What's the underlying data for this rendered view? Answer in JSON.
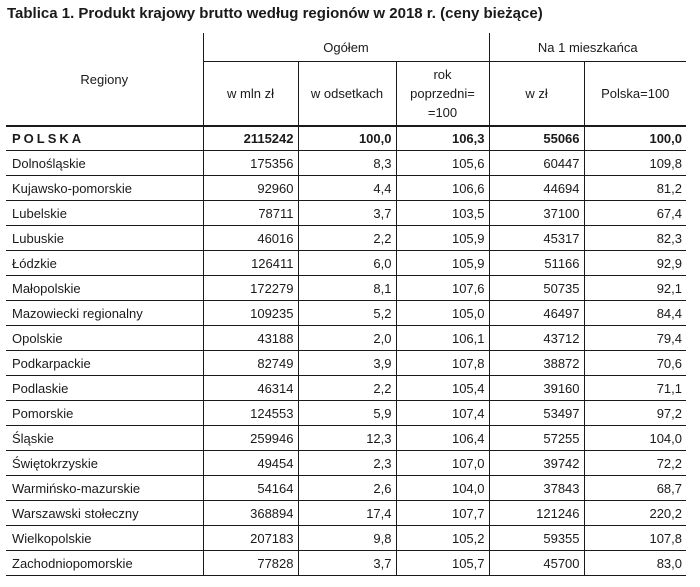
{
  "title": "Tablica 1. Produkt krajowy brutto według regionów w 2018 r. (ceny bieżące)",
  "header": {
    "regiony": "Regiony",
    "group_ogolem": "Ogółem",
    "group_na1": "Na 1 mieszkańca",
    "col_mln": "w mln zł",
    "col_odsetkach": "w odsetkach",
    "col_rok": "rok\npoprzedni=\n=100",
    "col_zl": "w zł",
    "col_polska": "Polska=100"
  },
  "total": {
    "region": "POLSKA",
    "mln": "2115242",
    "odsetkach": "100,0",
    "rok": "106,3",
    "zl": "55066",
    "polska": "100,0"
  },
  "rows": [
    {
      "region": "Dolnośląskie",
      "mln": "175356",
      "odsetkach": "8,3",
      "rok": "105,6",
      "zl": "60447",
      "polska": "109,8"
    },
    {
      "region": "Kujawsko-pomorskie",
      "mln": "92960",
      "odsetkach": "4,4",
      "rok": "106,6",
      "zl": "44694",
      "polska": "81,2"
    },
    {
      "region": "Lubelskie",
      "mln": "78711",
      "odsetkach": "3,7",
      "rok": "103,5",
      "zl": "37100",
      "polska": "67,4"
    },
    {
      "region": "Lubuskie",
      "mln": "46016",
      "odsetkach": "2,2",
      "rok": "105,9",
      "zl": "45317",
      "polska": "82,3"
    },
    {
      "region": "Łódzkie",
      "mln": "126411",
      "odsetkach": "6,0",
      "rok": "105,9",
      "zl": "51166",
      "polska": "92,9"
    },
    {
      "region": "Małopolskie",
      "mln": "172279",
      "odsetkach": "8,1",
      "rok": "107,6",
      "zl": "50735",
      "polska": "92,1"
    },
    {
      "region": "Mazowiecki regionalny",
      "mln": "109235",
      "odsetkach": "5,2",
      "rok": "105,0",
      "zl": "46497",
      "polska": "84,4"
    },
    {
      "region": "Opolskie",
      "mln": "43188",
      "odsetkach": "2,0",
      "rok": "106,1",
      "zl": "43712",
      "polska": "79,4"
    },
    {
      "region": "Podkarpackie",
      "mln": "82749",
      "odsetkach": "3,9",
      "rok": "107,8",
      "zl": "38872",
      "polska": "70,6"
    },
    {
      "region": "Podlaskie",
      "mln": "46314",
      "odsetkach": "2,2",
      "rok": "105,4",
      "zl": "39160",
      "polska": "71,1"
    },
    {
      "region": "Pomorskie",
      "mln": "124553",
      "odsetkach": "5,9",
      "rok": "107,4",
      "zl": "53497",
      "polska": "97,2"
    },
    {
      "region": "Śląskie",
      "mln": "259946",
      "odsetkach": "12,3",
      "rok": "106,4",
      "zl": "57255",
      "polska": "104,0"
    },
    {
      "region": "Świętokrzyskie",
      "mln": "49454",
      "odsetkach": "2,3",
      "rok": "107,0",
      "zl": "39742",
      "polska": "72,2"
    },
    {
      "region": "Warmińsko-mazurskie",
      "mln": "54164",
      "odsetkach": "2,6",
      "rok": "104,0",
      "zl": "37843",
      "polska": "68,7"
    },
    {
      "region": "Warszawski stołeczny",
      "mln": "368894",
      "odsetkach": "17,4",
      "rok": "107,7",
      "zl": "121246",
      "polska": "220,2"
    },
    {
      "region": "Wielkopolskie",
      "mln": "207183",
      "odsetkach": "9,8",
      "rok": "105,2",
      "zl": "59355",
      "polska": "107,8"
    },
    {
      "region": "Zachodniopomorskie",
      "mln": "77828",
      "odsetkach": "3,7",
      "rok": "105,7",
      "zl": "45700",
      "polska": "83,0"
    }
  ]
}
